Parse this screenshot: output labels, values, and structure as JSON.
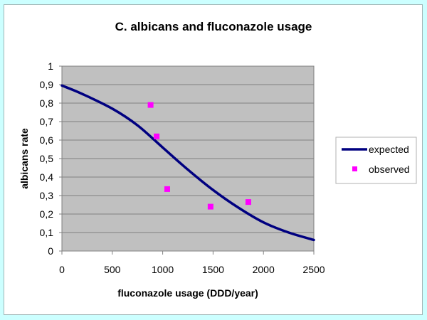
{
  "chart_data": {
    "type": "scatter",
    "title": "C. albicans and fluconazole usage",
    "xlabel": "fluconazole usage (DDD/year)",
    "ylabel": "albicans rate",
    "xlim": [
      0,
      2500
    ],
    "ylim": [
      0,
      1
    ],
    "x_ticks": [
      "0",
      "500",
      "1000",
      "1500",
      "2000",
      "2500"
    ],
    "y_ticks": [
      "0",
      "0,1",
      "0,2",
      "0,3",
      "0,4",
      "0,5",
      "0,6",
      "0,7",
      "0,8",
      "0,9",
      "1"
    ],
    "grid": "horizontal",
    "plot_background": "#c0c0c0",
    "legend_position": "right",
    "series": [
      {
        "name": "expected",
        "kind": "line",
        "color": "#000080",
        "x": [
          0,
          200,
          500,
          750,
          1000,
          1250,
          1500,
          1750,
          2000,
          2250,
          2500
        ],
        "y": [
          0.895,
          0.85,
          0.77,
          0.68,
          0.56,
          0.44,
          0.33,
          0.235,
          0.155,
          0.1,
          0.06
        ]
      },
      {
        "name": "observed",
        "kind": "marker",
        "color": "#ff00ff",
        "x": [
          880,
          940,
          1045,
          1475,
          1850
        ],
        "y": [
          0.79,
          0.62,
          0.335,
          0.24,
          0.265
        ]
      }
    ]
  },
  "legend": {
    "expected_label": "expected",
    "observed_label": "observed"
  }
}
